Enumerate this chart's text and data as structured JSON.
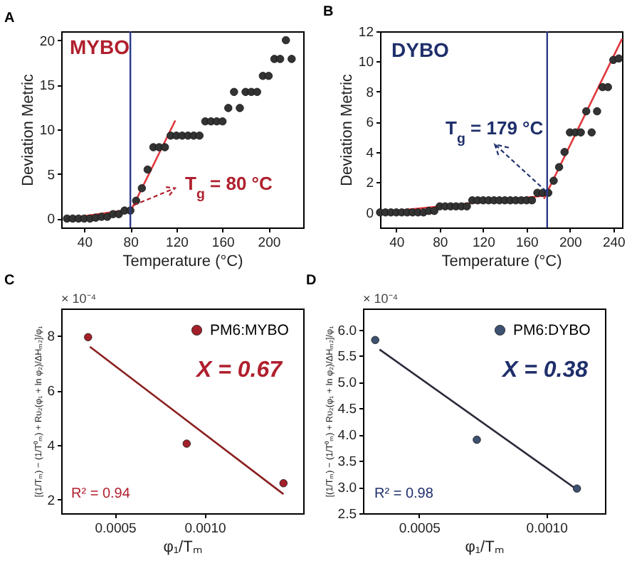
{
  "chart_data": [
    {
      "type": "scatter",
      "title": "A",
      "xlabel": "Temperature (°C)",
      "ylabel": "Deviation Metric",
      "xlim": [
        20,
        230
      ],
      "xticks": [
        40,
        80,
        120,
        160,
        200
      ],
      "ylim": [
        -1,
        21
      ],
      "yticks": [
        0,
        5,
        10,
        15,
        20
      ],
      "series": [
        {
          "type": "line",
          "color": "#e0393e",
          "x": [
            25,
            80
          ],
          "values": [
            0,
            1
          ]
        },
        {
          "type": "line",
          "color": "#e0393e",
          "x": [
            79,
            119
          ],
          "values": [
            0.5,
            11
          ]
        },
        {
          "type": "scatter",
          "marker": "circle",
          "color": "#333333",
          "x": [
            25,
            30,
            35,
            40,
            45,
            50,
            55,
            60,
            65,
            70,
            75,
            80,
            85,
            90,
            95,
            100,
            105,
            110,
            115,
            120,
            125,
            130,
            135,
            140,
            145,
            150,
            155,
            160,
            165,
            170,
            175,
            180,
            185,
            190,
            195,
            200,
            205,
            210,
            215,
            220
          ],
          "values": [
            0,
            0,
            0,
            0,
            0,
            0.1,
            0.2,
            0.2,
            0.5,
            0.5,
            0.9,
            0.9,
            2.0,
            3.4,
            5.5,
            8.0,
            8.0,
            8.0,
            9.3,
            9.3,
            9.3,
            9.3,
            9.3,
            9.3,
            10.9,
            10.9,
            10.9,
            10.9,
            12.4,
            14.2,
            12.4,
            14.2,
            14.2,
            14.2,
            16.0,
            16.0,
            17.9,
            17.9,
            20.0,
            17.9
          ]
        }
      ],
      "ref_lines": [
        {
          "axis": "x",
          "value": 80,
          "color": "#2b3a8c"
        }
      ],
      "annotations": [
        "MYBO",
        {
          "text": "T$_{g}$ = 80 °C",
          "x": 83,
          "y": 1.5
        }
      ]
    },
    {
      "type": "scatter",
      "title": "B",
      "xlabel": "Temperature (°C)",
      "ylabel": "Deviation Metric",
      "xlim": [
        25,
        248
      ],
      "xticks": [
        40,
        80,
        120,
        160,
        200,
        240
      ],
      "ylim": [
        -1,
        12
      ],
      "yticks": [
        0,
        2,
        4,
        6,
        8,
        10,
        12
      ],
      "series": [
        {
          "type": "line",
          "color": "#e0393e",
          "x": [
            25,
            176
          ],
          "values": [
            0,
            1.1
          ]
        },
        {
          "type": "line",
          "color": "#e0393e",
          "x": [
            176,
            248
          ],
          "values": [
            0.9,
            11.5
          ]
        },
        {
          "type": "scatter",
          "marker": "circle",
          "color": "#333333",
          "x": [
            25,
            30,
            35,
            40,
            45,
            50,
            55,
            60,
            65,
            70,
            75,
            80,
            85,
            90,
            95,
            100,
            105,
            110,
            115,
            120,
            125,
            130,
            135,
            140,
            145,
            150,
            155,
            160,
            165,
            170,
            175,
            180,
            185,
            190,
            195,
            200,
            205,
            210,
            215,
            220,
            225,
            230,
            235,
            240,
            245
          ],
          "values": [
            0,
            0,
            0,
            0,
            0,
            0,
            0,
            0,
            0,
            0.1,
            0.1,
            0.4,
            0.4,
            0.4,
            0.4,
            0.4,
            0.4,
            0.8,
            0.8,
            0.8,
            0.8,
            0.8,
            0.8,
            0.8,
            0.8,
            0.8,
            0.8,
            0.8,
            0.8,
            1.3,
            1.3,
            1.3,
            2.1,
            3.0,
            4.0,
            5.3,
            5.3,
            5.3,
            6.7,
            5.3,
            6.7,
            8.3,
            8.3,
            10.1,
            10.2
          ]
        }
      ],
      "ref_lines": [
        {
          "axis": "x",
          "value": 179,
          "color": "#2b3a8c"
        }
      ],
      "annotations": [
        "DYBO",
        {
          "text": "T$_{g}$ = 179 °C",
          "x": 178,
          "y": 1.4
        }
      ]
    },
    {
      "type": "scatter",
      "title": "C",
      "xlabel": "φ₁/Tₘ",
      "ylabel": "[(1/Tₘ) − (1/T⁰ₘ) + Rυ₂(φ₁ + ln φ₂)/ΔHₘ₂]/φ₁",
      "xlim": [
        0.0002,
        0.00155
      ],
      "xticks": [
        0.0005,
        {
          "value": 0.001,
          "label": "0.0010"
        }
      ],
      "ylim": [
        1.5,
        9
      ],
      "yticks": [
        2,
        4,
        6,
        8
      ],
      "legend": "top right",
      "series": [
        {
          "type": "line",
          "color": "#8b2020",
          "x": [
            0.00036,
            0.00144
          ],
          "values": [
            7.6,
            2.2
          ]
        },
        {
          "type": "scatter",
          "marker": "circle",
          "name": "PM6:MYBO",
          "color": "#a3202a",
          "x": [
            0.00035,
            0.0009,
            0.00144
          ],
          "values": [
            7.95,
            4.05,
            2.6
          ]
        }
      ],
      "annotations": [
        "X = 0.67",
        "R² = 0.94",
        "× 10⁻⁴"
      ]
    },
    {
      "type": "scatter",
      "title": "D",
      "xlabel": "φ₁/Tₘ",
      "ylabel": "[(1/Tₘ) − (1/T⁰ₘ) + Rυ₂(φ₁ + ln φ₂)/ΔHₘ₂]/φ₁",
      "xlim": [
        0.00028,
        0.00123
      ],
      "xticks": [
        0.0005,
        {
          "value": 0.001,
          "label": "0.0010"
        }
      ],
      "ylim": [
        2.5,
        6.4
      ],
      "yticks": [
        2.5,
        {
          "value": 3,
          "label": "3.0"
        },
        3.5,
        {
          "value": 4,
          "label": "4.0"
        },
        4.5,
        {
          "value": 5,
          "label": "5.0"
        },
        5.5,
        {
          "value": 6,
          "label": "6.0"
        }
      ],
      "legend": "top right",
      "series": [
        {
          "type": "line",
          "color": "#2a2a3a",
          "x": [
            0.000345,
            0.00112
          ],
          "values": [
            5.62,
            2.95
          ]
        },
        {
          "type": "scatter",
          "marker": "circle",
          "name": "PM6:DYBO",
          "color": "#3e5170",
          "x": [
            0.000328,
            0.000727,
            0.00112
          ],
          "values": [
            5.8,
            3.9,
            2.97
          ]
        }
      ],
      "annotations": [
        "X = 0.38",
        "R² = 0.98",
        "× 10⁻⁴"
      ]
    }
  ]
}
